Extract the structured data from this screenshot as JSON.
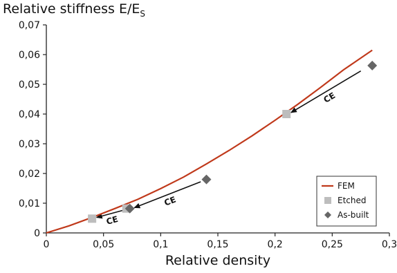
{
  "chart_data": {
    "type": "scatter",
    "ylabel_main": "Relative stiffness E/E",
    "ylabel_sub": "S",
    "xlabel": "Relative density",
    "xlim": [
      0,
      0.3
    ],
    "ylim": [
      0,
      0.07
    ],
    "x_ticks": [
      "0",
      "0,05",
      "0,1",
      "0,15",
      "0,2",
      "0,25",
      "0,3"
    ],
    "y_ticks": [
      "0",
      "0,01",
      "0,02",
      "0,03",
      "0,04",
      "0,05",
      "0,06",
      "0,07"
    ],
    "grid": false,
    "legend_position": "bottom-right",
    "series": [
      {
        "name": "FEM",
        "kind": "line",
        "color": "#c0391b",
        "x": [
          0,
          0.02,
          0.04,
          0.06,
          0.08,
          0.1,
          0.12,
          0.14,
          0.16,
          0.18,
          0.2,
          0.22,
          0.24,
          0.26,
          0.285
        ],
        "y": [
          0,
          0.0024,
          0.0052,
          0.0082,
          0.0113,
          0.0149,
          0.0188,
          0.0232,
          0.0278,
          0.0327,
          0.0379,
          0.0433,
          0.049,
          0.0549,
          0.0615
        ]
      },
      {
        "name": "Etched",
        "kind": "square",
        "color": "#bdbdbd",
        "x": [
          0.04,
          0.07,
          0.21
        ],
        "y": [
          0.0048,
          0.0082,
          0.04
        ]
      },
      {
        "name": "As-built",
        "kind": "diamond",
        "color": "#666666",
        "x": [
          0.073,
          0.14,
          0.285
        ],
        "y": [
          0.0082,
          0.018,
          0.0563
        ]
      }
    ],
    "annotations": [
      {
        "label": "CE",
        "from": [
          0.275,
          0.0545
        ],
        "to": [
          0.214,
          0.0405
        ]
      },
      {
        "label": "CE",
        "from": [
          0.135,
          0.0172
        ],
        "to": [
          0.077,
          0.0085
        ]
      },
      {
        "label": "CE",
        "from": [
          0.068,
          0.0077
        ],
        "to": [
          0.044,
          0.0052
        ]
      }
    ]
  }
}
